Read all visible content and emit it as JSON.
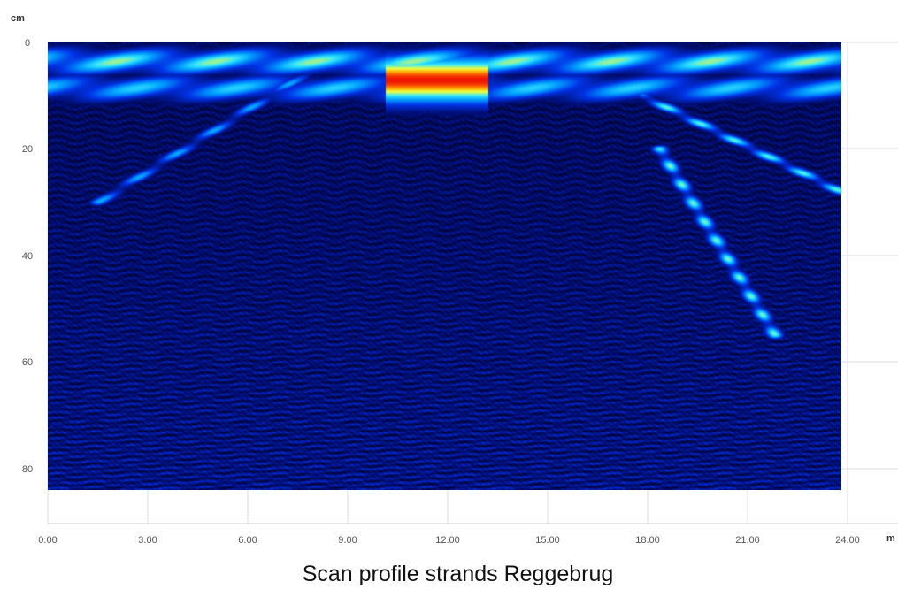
{
  "chart_data": {
    "type": "heatmap",
    "title": "Scan profile strands Reggebrug",
    "xlabel": "m",
    "ylabel": "cm",
    "xlim": [
      0,
      24
    ],
    "ylim": [
      0,
      90
    ],
    "y_inverted": true,
    "data_depth_max": 84,
    "x_ticks": [
      "0.00",
      "3.00",
      "6.00",
      "9.00",
      "12.00",
      "15.00",
      "18.00",
      "21.00",
      "24.00"
    ],
    "y_ticks": [
      "0",
      "20",
      "40",
      "60",
      "80"
    ],
    "grid": true,
    "colormap": [
      "#000022",
      "#000f78",
      "#0033e6",
      "#009cff",
      "#33e6ff",
      "#f0ff3c",
      "#ff9900",
      "#f01400"
    ],
    "features": [
      {
        "name": "surface-reflection",
        "x_range": [
          0,
          24
        ],
        "depth_cm": 3.5,
        "intensity": 0.74
      },
      {
        "name": "second-reflection",
        "x_range": [
          0,
          24
        ],
        "depth_cm": 8.5,
        "intensity": 0.62
      },
      {
        "name": "hotspot",
        "x_range": [
          10.2,
          13.3
        ],
        "depth_cm": 7,
        "intensity": 1.0
      },
      {
        "name": "left-strands-diagonal",
        "from": [
          1.5,
          30
        ],
        "to": [
          8,
          5
        ],
        "intensity": 0.55
      },
      {
        "name": "right-strands-diagonal",
        "from": [
          18,
          10
        ],
        "to": [
          24,
          28
        ],
        "intensity": 0.7
      },
      {
        "name": "right-strands-lower",
        "from": [
          18.5,
          20
        ],
        "to": [
          22,
          55
        ],
        "intensity": 0.72
      }
    ]
  }
}
